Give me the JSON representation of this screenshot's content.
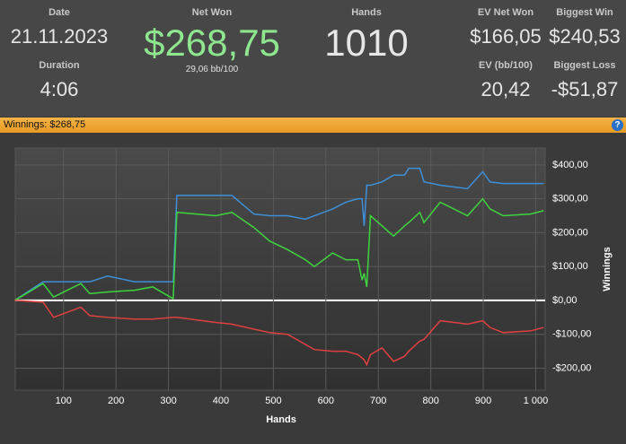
{
  "header": {
    "stats": [
      {
        "label": "Date",
        "value": "21.11.2023"
      },
      {
        "label": "Net Won",
        "value": "$268,75",
        "sub": "29,06 bb/100"
      },
      {
        "label": "Hands",
        "value": "1010"
      },
      {
        "label": "EV Net Won",
        "value": "$166,05"
      },
      {
        "label": "Biggest Win",
        "value": "$240,53"
      },
      {
        "label": "Duration",
        "value": "4:06"
      },
      {
        "label": "EV (bb/100)",
        "value": "20,42"
      },
      {
        "label": "Biggest Loss",
        "value": "-$51,87"
      }
    ]
  },
  "panel": {
    "title": "Winnings: $268,75",
    "help": "?"
  },
  "chart_data": {
    "type": "line",
    "xlabel": "Hands",
    "ylabel": "Winnings",
    "x": [
      7,
      61,
      81,
      133,
      150,
      184,
      235,
      270,
      309,
      316,
      390,
      421,
      463,
      493,
      527,
      561,
      578,
      613,
      638,
      661,
      669,
      673,
      678,
      685,
      707,
      729,
      750,
      758,
      779,
      787,
      818,
      870,
      899,
      913,
      938,
      990,
      1015
    ],
    "series": [
      {
        "color": "#3f8fd8",
        "values": [
          0,
          55,
          55,
          55,
          55,
          72,
          55,
          55,
          55,
          310,
          310,
          310,
          255,
          250,
          250,
          240,
          250,
          270,
          290,
          300,
          300,
          220,
          340,
          340,
          350,
          370,
          370,
          390,
          390,
          350,
          340,
          330,
          380,
          350,
          345,
          345,
          345
        ]
      },
      {
        "color": "#3ed43e",
        "values": [
          0,
          50,
          10,
          50,
          20,
          25,
          30,
          40,
          5,
          260,
          250,
          260,
          215,
          175,
          150,
          120,
          100,
          140,
          120,
          120,
          60,
          80,
          40,
          250,
          220,
          190,
          220,
          230,
          260,
          230,
          290,
          250,
          300,
          270,
          250,
          255,
          265
        ]
      },
      {
        "color": "#e04040",
        "values": [
          0,
          -5,
          -50,
          -20,
          -45,
          -50,
          -55,
          -55,
          -50,
          -50,
          -65,
          -70,
          -85,
          -95,
          -100,
          -130,
          -145,
          -150,
          -150,
          -160,
          -170,
          -175,
          -190,
          -160,
          -140,
          -180,
          -165,
          -150,
          -120,
          -115,
          -60,
          -70,
          -60,
          -80,
          -95,
          -90,
          -80
        ]
      }
    ],
    "xlim": [
      8,
      1018
    ],
    "ylim": [
      -265,
      450
    ],
    "xticks": [
      100,
      200,
      300,
      400,
      500,
      600,
      700,
      800,
      900,
      {
        "value": 1000,
        "label": "1 000"
      }
    ],
    "yticks": [
      {
        "value": 400,
        "label": "$400,00"
      },
      {
        "value": 300,
        "label": "$300,00"
      },
      {
        "value": 200,
        "label": "$200,00"
      },
      {
        "value": 100,
        "label": "$100,00"
      },
      {
        "value": 0,
        "label": "$0,00"
      },
      {
        "value": -100,
        "label": "-$100,00"
      },
      {
        "value": -200,
        "label": "-$200,00"
      }
    ],
    "grid": true
  }
}
